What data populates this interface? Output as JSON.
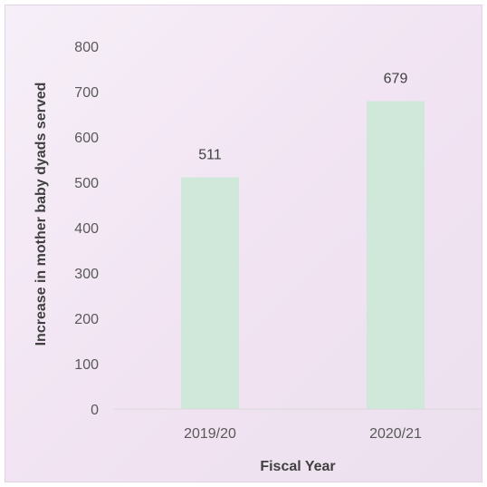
{
  "chart_data": {
    "type": "bar",
    "categories": [
      "2019/20",
      "2020/21"
    ],
    "values": [
      511,
      679
    ],
    "data_labels": [
      "511",
      "679"
    ],
    "xlabel": "Fiscal Year",
    "ylabel": "Increase in mother baby dyads served",
    "ylim": [
      0,
      800
    ],
    "y_ticks": [
      "0",
      "100",
      "200",
      "300",
      "400",
      "500",
      "600",
      "700",
      "800"
    ],
    "grid": false,
    "bar_color": "#cfe8da",
    "axis_color": "#d9d9d9",
    "background_color": "#f1e3f2"
  }
}
